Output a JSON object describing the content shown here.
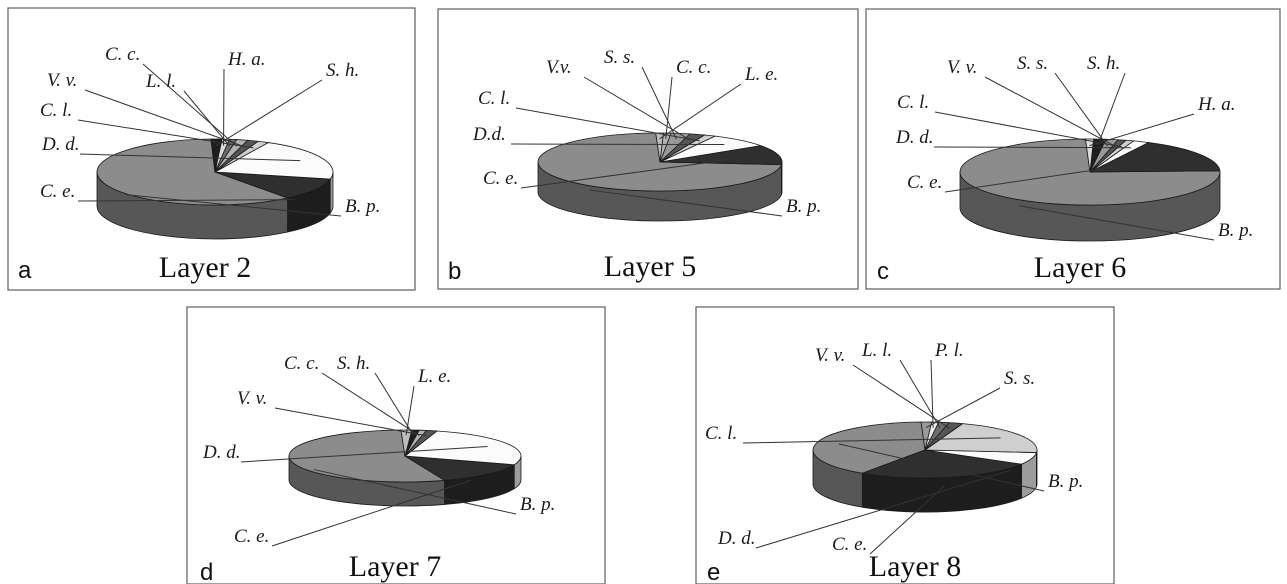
{
  "colors": {
    "B. p.": "#8c8c8c",
    "C. e.": "#2f2f2f",
    "D. d.": "#fbfbfb",
    "C. l.": "#cfcfcf",
    "V. v.": "#555555",
    "C. c.": "#b4b4b4",
    "L. l.": "#6e6e6e",
    "H. a.": "#dcdcdc",
    "S. h.": "#1e1e1e",
    "S. s.": "#999999",
    "L. e.": "#bdbdbd",
    "P. l.": "#ededed"
  },
  "chart_data": [
    {
      "type": "pie",
      "panel": "a",
      "title": "Layer 2",
      "slices": [
        {
          "label": "B. p.",
          "value": 60
        },
        {
          "label": "C. e.",
          "value": 11
        },
        {
          "label": "D. d.",
          "value": 21
        },
        {
          "label": "C. l.",
          "value": 1.5
        },
        {
          "label": "V. v.",
          "value": 1.5
        },
        {
          "label": "C. c.",
          "value": 1.5
        },
        {
          "label": "L. l.",
          "value": 1
        },
        {
          "label": "H. a.",
          "value": 1
        },
        {
          "label": "S. h.",
          "value": 1.5
        }
      ]
    },
    {
      "type": "pie",
      "panel": "b",
      "title": "Layer 5",
      "slices": [
        {
          "label": "B. p.",
          "value": 73
        },
        {
          "label": "C. e.",
          "value": 11
        },
        {
          "label": "D.d.",
          "value": 8
        },
        {
          "label": "C. l.",
          "value": 1.5
        },
        {
          "label": "V.v.",
          "value": 2
        },
        {
          "label": "S. s.",
          "value": 2.5
        },
        {
          "label": "C. c.",
          "value": 1
        },
        {
          "label": "L. e.",
          "value": 1
        }
      ]
    },
    {
      "type": "pie",
      "panel": "c",
      "title": "Layer 6",
      "slices": [
        {
          "label": "B. p.",
          "value": 75
        },
        {
          "label": "C. e.",
          "value": 17
        },
        {
          "label": "D. d.",
          "value": 2
        },
        {
          "label": "C. l.",
          "value": 1
        },
        {
          "label": "V. v.",
          "value": 1
        },
        {
          "label": "S. s.",
          "value": 1.5
        },
        {
          "label": "S. h.",
          "value": 1.5
        },
        {
          "label": "H. a.",
          "value": 1
        }
      ]
    },
    {
      "type": "pie",
      "panel": "d",
      "title": "Layer 7",
      "slices": [
        {
          "label": "B. p.",
          "value": 55
        },
        {
          "label": "C. e.",
          "value": 14
        },
        {
          "label": "D. d.",
          "value": 26
        },
        {
          "label": "V. v.",
          "value": 1.5
        },
        {
          "label": "C. c.",
          "value": 1
        },
        {
          "label": "S. h.",
          "value": 1
        },
        {
          "label": "L. e.",
          "value": 1.5
        }
      ]
    },
    {
      "type": "pie",
      "panel": "e",
      "title": "Layer 8",
      "slices": [
        {
          "label": "B. p.",
          "value": 40
        },
        {
          "label": "C. e.",
          "value": 26
        },
        {
          "label": "D. d.",
          "value": 7
        },
        {
          "label": "C. l.",
          "value": 21
        },
        {
          "label": "V. v.",
          "value": 2
        },
        {
          "label": "L. l.",
          "value": 1.5
        },
        {
          "label": "P. l.",
          "value": 1
        },
        {
          "label": "S. s.",
          "value": 1.5
        }
      ]
    }
  ]
}
